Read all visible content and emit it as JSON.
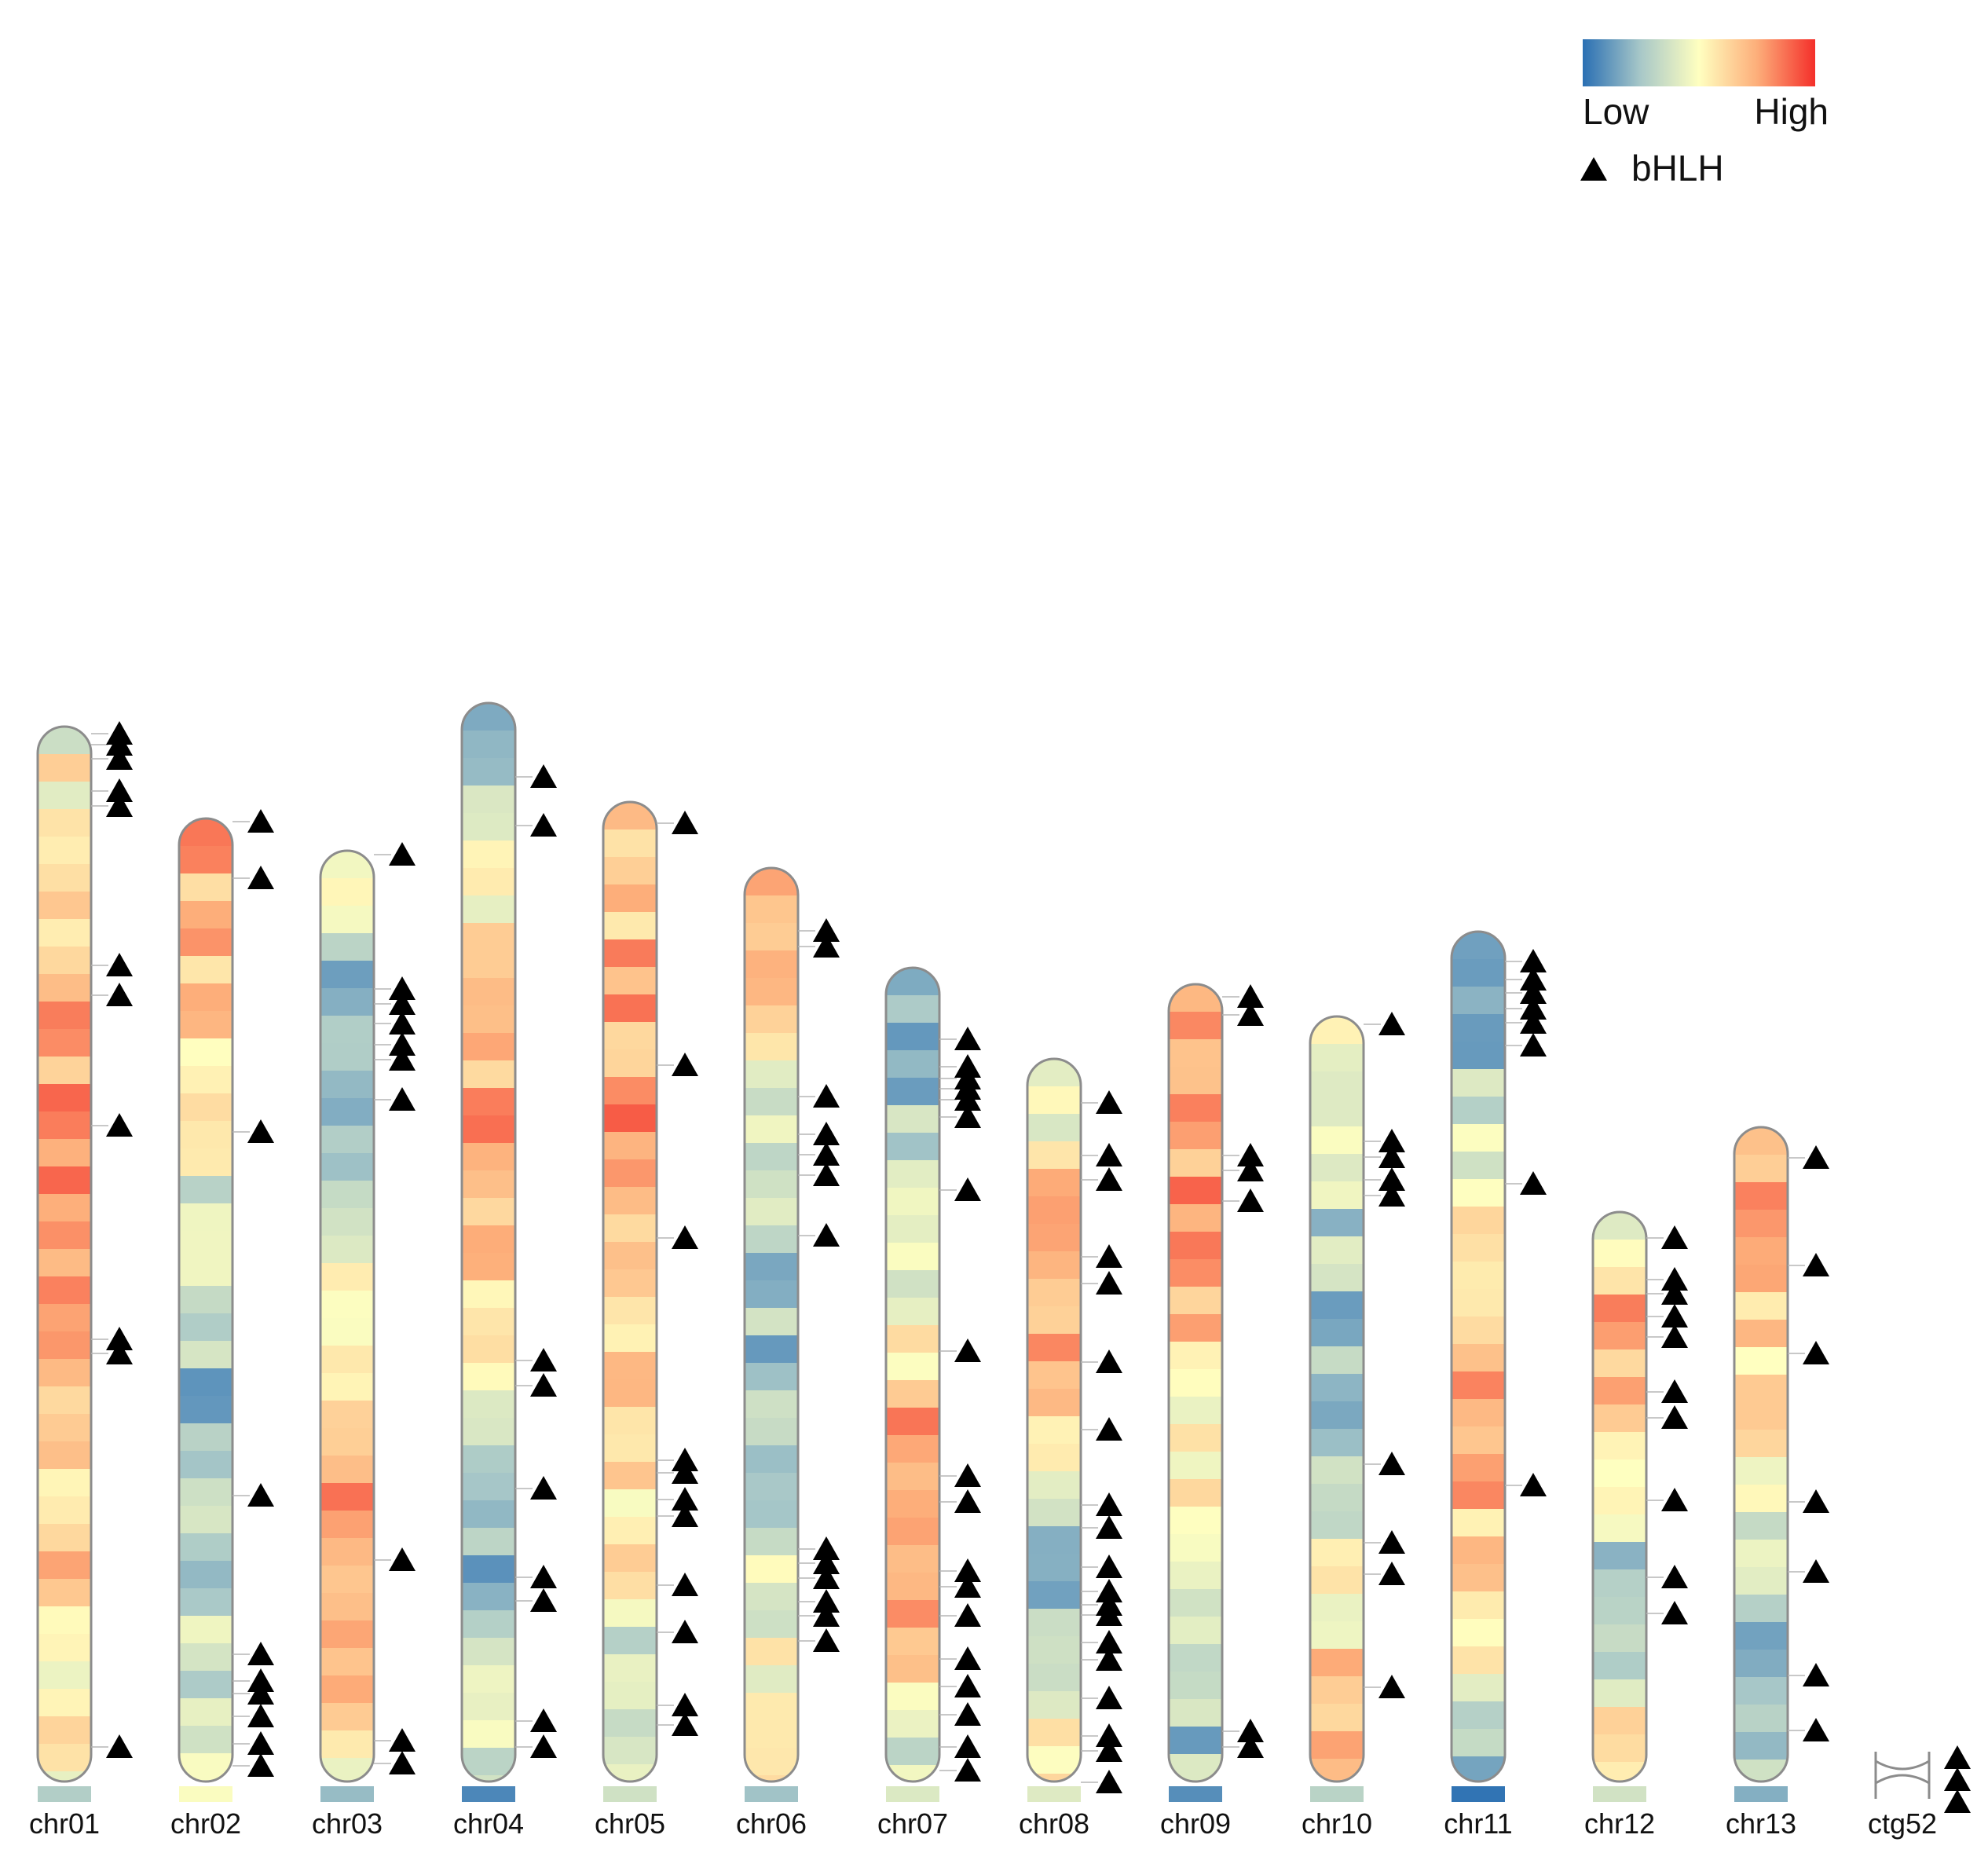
{
  "legend": {
    "low_label": "Low",
    "high_label": "High",
    "gene_label": "bHLH",
    "gradient": [
      "#2a6fb3",
      "#a8c8c8",
      "#ffffc0",
      "#fdae7a",
      "#f42f2a"
    ]
  },
  "chromosomes": [
    {
      "name": "chr01",
      "length": 1343,
      "bhlh": [
        40,
        541,
        559,
        831,
        997,
        1035,
        1238,
        1257,
        1298,
        1316,
        1330
      ]
    },
    {
      "name": "chr02",
      "length": 1226,
      "bhlh": [
        16,
        44,
        79,
        108,
        124,
        158,
        360,
        823,
        1146,
        1218
      ]
    },
    {
      "name": "chr03",
      "length": 1185,
      "bhlh": [
        19,
        48,
        278,
        864,
        915,
        934,
        961,
        986,
        1005,
        1176
      ]
    },
    {
      "name": "chr04",
      "length": 1373,
      "bhlh": [
        40,
        73,
        226,
        256,
        369,
        500,
        532,
        1213,
        1275
      ]
    },
    {
      "name": "chr05",
      "length": 1247,
      "bhlh": [
        68,
        93,
        186,
        246,
        334,
        355,
        389,
        405,
        688,
        908,
        1216
      ]
    },
    {
      "name": "chr06",
      "length": 1163,
      "bhlh": [
        175,
        207,
        225,
        255,
        274,
        292,
        691,
        768,
        794,
        820,
        868,
        1059,
        1079
      ]
    },
    {
      "name": "chr07",
      "length": 1036,
      "bhlh": [
        10,
        40,
        81,
        117,
        152,
        207,
        244,
        264,
        352,
        385,
        544,
        749,
        842,
        864,
        878,
        891,
        906,
        941
      ]
    },
    {
      "name": "chr08",
      "length": 920,
      "bhlh": [
        -5,
        35,
        54,
        102,
        151,
        173,
        208,
        221,
        238,
        269,
        319,
        348,
        444,
        530,
        630,
        664,
        762,
        793,
        860
      ]
    },
    {
      "name": "chr09",
      "length": 1015,
      "bhlh": [
        40,
        60,
        735,
        774,
        793,
        972,
        995
      ]
    },
    {
      "name": "chr10",
      "length": 974,
      "bhlh": [
        116,
        260,
        300,
        400,
        742,
        762,
        791,
        811,
        960
      ]
    },
    {
      "name": "chr11",
      "length": 1082,
      "bhlh": [
        373,
        757,
        933,
        962,
        980,
        1000,
        1017,
        1040
      ]
    },
    {
      "name": "chr12",
      "length": 725,
      "bhlh": [
        210,
        256,
        354,
        459,
        492,
        562,
        588,
        617,
        635,
        688
      ]
    },
    {
      "name": "chr13",
      "length": 833,
      "bhlh": [
        61,
        131,
        263,
        352,
        541,
        653,
        790
      ]
    },
    {
      "name": "ctg52",
      "length": 5,
      "bhlh": [
        -30,
        -2,
        26
      ]
    }
  ]
}
